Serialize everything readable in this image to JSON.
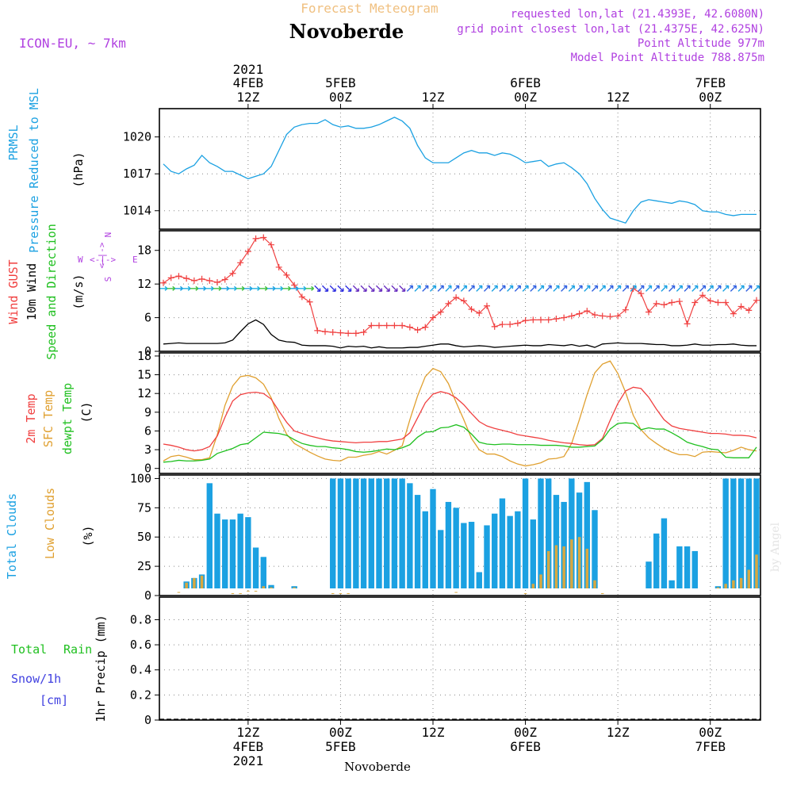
{
  "header": {
    "title_top": "Forecast Meteogram",
    "station": "Novoberde",
    "model": "ICON-EU, ~ 7km",
    "requested": "requested lon,lat (21.4393E, 42.6080N)",
    "gridpoint": "grid point closest lon,lat (21.4375E, 42.625N)",
    "point_alt": "Point Altitude 977m",
    "model_alt": "Model Point Altitude 788.875m",
    "footer_station": "Novoberde",
    "credit": "by Angel"
  },
  "colors": {
    "pressure": "#1ba1e2",
    "gust": "#f04040",
    "wind": "#000000",
    "t2m": "#f04040",
    "sfc": "#e0a030",
    "dew": "#20c020",
    "clouds_total": "#1ba1e2",
    "clouds_low": "#d8a840",
    "rain": "#20c020",
    "snow": "#4040e0",
    "label_purple": "#b040e0",
    "title_orange": "#f0c080"
  },
  "time_axis": {
    "top": [
      {
        "h": 12,
        "l1": "2021",
        "l2": "4FEB",
        "l3": "12Z"
      },
      {
        "h": 24,
        "l1": "",
        "l2": "5FEB",
        "l3": "00Z"
      },
      {
        "h": 36,
        "l1": "",
        "l2": "",
        "l3": "12Z"
      },
      {
        "h": 48,
        "l1": "",
        "l2": "6FEB",
        "l3": "00Z"
      },
      {
        "h": 60,
        "l1": "",
        "l2": "",
        "l3": "12Z"
      },
      {
        "h": 72,
        "l1": "",
        "l2": "7FEB",
        "l3": "00Z"
      }
    ],
    "bottom": [
      {
        "h": 12,
        "l1": "12Z",
        "l2": "4FEB",
        "l3": "2021"
      },
      {
        "h": 24,
        "l1": "00Z",
        "l2": "5FEB",
        "l3": ""
      },
      {
        "h": 36,
        "l1": "12Z",
        "l2": "",
        "l3": ""
      },
      {
        "h": 48,
        "l1": "00Z",
        "l2": "6FEB",
        "l3": ""
      },
      {
        "h": 60,
        "l1": "12Z",
        "l2": "",
        "l3": ""
      },
      {
        "h": 72,
        "l1": "00Z",
        "l2": "7FEB",
        "l3": ""
      }
    ]
  },
  "panels": {
    "pressure": {
      "label1": "PRMSL",
      "label2": "Pressure Reduced to MSL",
      "unit": "(hPa)",
      "ticks": [
        1014,
        1017,
        1020
      ]
    },
    "wind": {
      "label1": "Wind GUST",
      "label2": "10m Wind",
      "label3": "Speed and Direction",
      "unit": "(m/s)",
      "ticks": [
        0,
        6,
        12,
        18
      ],
      "compass_n": "N",
      "compass_s": "S",
      "compass_w": "W",
      "compass_e": "E",
      "compass_ns": "<-|->",
      "compass_we": "<-|->"
    },
    "temp": {
      "label1": "2m Temp",
      "label2": "SFC Temp",
      "label3": "dewpt Temp",
      "unit": "(C)",
      "ticks": [
        0,
        3,
        6,
        9,
        12,
        15,
        18
      ]
    },
    "clouds": {
      "label1": "Total Clouds",
      "label2": "Low Clouds",
      "unit": "(%)",
      "ticks": [
        0,
        25,
        50,
        75,
        100
      ]
    },
    "precip": {
      "label1": "Total",
      "label1b": "Rain",
      "label2": "Snow/1h",
      "label3": "[cm]",
      "unit": "1hr Precip (mm)",
      "ticks": [
        "0",
        "0.2",
        "0.4",
        "0.6",
        "0.8"
      ]
    }
  },
  "chart_data": {
    "type": "line",
    "x_unit": "hours from 4FEB 00Z 2021",
    "x_range": [
      1,
      78
    ],
    "pressure": {
      "ylim": [
        1012.5,
        1022.3
      ],
      "x": [
        1,
        2,
        3,
        4,
        5,
        6,
        7,
        8,
        9,
        10,
        11,
        12,
        13,
        14,
        15,
        16,
        17,
        18,
        19,
        20,
        21,
        22,
        23,
        24,
        25,
        26,
        27,
        28,
        29,
        30,
        31,
        32,
        33,
        34,
        35,
        36,
        37,
        38,
        39,
        40,
        41,
        42,
        43,
        44,
        45,
        46,
        47,
        48,
        49,
        50,
        51,
        52,
        53,
        54,
        55,
        56,
        57,
        58,
        59,
        60,
        61,
        62,
        63,
        64,
        65,
        66,
        67,
        68,
        69,
        70,
        71,
        72,
        73,
        74,
        75,
        76,
        77,
        78
      ],
      "values": [
        1017.8,
        1017.2,
        1017.0,
        1017.4,
        1017.7,
        1018.5,
        1017.9,
        1017.6,
        1017.2,
        1017.2,
        1016.9,
        1016.6,
        1016.8,
        1017.0,
        1017.6,
        1018.9,
        1020.2,
        1020.8,
        1021.0,
        1021.1,
        1021.1,
        1021.4,
        1021.0,
        1020.8,
        1020.9,
        1020.7,
        1020.7,
        1020.8,
        1021.0,
        1021.3,
        1021.6,
        1021.3,
        1020.7,
        1019.3,
        1018.3,
        1017.9,
        1017.9,
        1017.9,
        1018.3,
        1018.7,
        1018.9,
        1018.7,
        1018.7,
        1018.5,
        1018.7,
        1018.6,
        1018.3,
        1017.9,
        1018.0,
        1018.1,
        1017.6,
        1017.8,
        1017.9,
        1017.5,
        1017.0,
        1016.2,
        1015.0,
        1014.1,
        1013.4,
        1013.2,
        1013.0,
        1014.0,
        1014.7,
        1014.9,
        1014.8,
        1014.7,
        1014.6,
        1014.8,
        1014.7,
        1014.5,
        1014.0,
        1013.9,
        1013.9,
        1013.7,
        1013.6,
        1013.7,
        1013.7,
        1013.7
      ]
    },
    "wind": {
      "ylim": [
        0,
        21.5
      ],
      "x": [
        1,
        2,
        3,
        4,
        5,
        6,
        7,
        8,
        9,
        10,
        11,
        12,
        13,
        14,
        15,
        16,
        17,
        18,
        19,
        20,
        21,
        22,
        23,
        24,
        25,
        26,
        27,
        28,
        29,
        30,
        31,
        32,
        33,
        34,
        35,
        36,
        37,
        38,
        39,
        40,
        41,
        42,
        43,
        44,
        45,
        46,
        47,
        48,
        49,
        50,
        51,
        52,
        53,
        54,
        55,
        56,
        57,
        58,
        59,
        60,
        61,
        62,
        63,
        64,
        65,
        66,
        67,
        68,
        69,
        70,
        71,
        72,
        73,
        74,
        75,
        76,
        77,
        78
      ],
      "gust": [
        12.2,
        13.1,
        13.4,
        13.0,
        12.6,
        12.9,
        12.6,
        12.3,
        12.8,
        13.9,
        15.8,
        17.8,
        20.1,
        20.3,
        19.0,
        15.0,
        13.6,
        11.8,
        9.7,
        8.8,
        3.7,
        3.5,
        3.4,
        3.3,
        3.2,
        3.2,
        3.4,
        4.6,
        4.6,
        4.6,
        4.6,
        4.6,
        4.3,
        3.8,
        4.3,
        6.0,
        7.0,
        8.5,
        9.6,
        9.0,
        7.5,
        6.8,
        8.1,
        4.4,
        4.8,
        4.8,
        5.0,
        5.5,
        5.6,
        5.6,
        5.6,
        5.8,
        6.0,
        6.3,
        6.7,
        7.2,
        6.5,
        6.3,
        6.2,
        6.3,
        7.4,
        11.2,
        10.3,
        7.0,
        8.5,
        8.3,
        8.7,
        8.9,
        4.9,
        8.7,
        10.0,
        9.0,
        8.7,
        8.7,
        6.7,
        8.0,
        7.3,
        9.1
      ],
      "speed": [
        1.3,
        1.4,
        1.5,
        1.4,
        1.4,
        1.4,
        1.4,
        1.4,
        1.5,
        2.0,
        3.5,
        4.9,
        5.6,
        4.8,
        3.0,
        2.0,
        1.7,
        1.6,
        1.1,
        1.0,
        1.0,
        1.0,
        0.9,
        0.6,
        0.9,
        0.8,
        0.9,
        0.6,
        0.8,
        0.6,
        0.6,
        0.6,
        0.7,
        0.7,
        0.9,
        1.1,
        1.3,
        1.3,
        1.0,
        0.8,
        0.9,
        1.0,
        0.9,
        0.7,
        0.8,
        0.9,
        1.0,
        1.1,
        1.0,
        1.0,
        1.2,
        1.1,
        1.0,
        1.2,
        0.9,
        1.1,
        0.7,
        1.3,
        1.4,
        1.5,
        1.4,
        1.4,
        1.4,
        1.3,
        1.2,
        1.2,
        1.0,
        1.0,
        1.1,
        1.3,
        1.1,
        1.1,
        1.2,
        1.2,
        1.3,
        1.1,
        1.0,
        1.0
      ]
    },
    "temperature": {
      "ylim": [
        -0.8,
        18.5
      ],
      "x": [
        1,
        2,
        3,
        4,
        5,
        6,
        7,
        8,
        9,
        10,
        11,
        12,
        13,
        14,
        15,
        16,
        17,
        18,
        19,
        20,
        21,
        22,
        23,
        24,
        25,
        26,
        27,
        28,
        29,
        30,
        31,
        32,
        33,
        34,
        35,
        36,
        37,
        38,
        39,
        40,
        41,
        42,
        43,
        44,
        45,
        46,
        47,
        48,
        49,
        50,
        51,
        52,
        53,
        54,
        55,
        56,
        57,
        58,
        59,
        60,
        61,
        62,
        63,
        64,
        65,
        66,
        67,
        68,
        69,
        70,
        71,
        72,
        73,
        74,
        75,
        76,
        77,
        78
      ],
      "t2m": [
        3.9,
        3.7,
        3.4,
        3.0,
        2.8,
        3.0,
        3.5,
        5.2,
        8.2,
        10.8,
        11.8,
        12.1,
        12.2,
        12.0,
        11.1,
        9.2,
        7.4,
        6.0,
        5.6,
        5.2,
        4.9,
        4.6,
        4.4,
        4.3,
        4.2,
        4.1,
        4.2,
        4.2,
        4.3,
        4.3,
        4.5,
        4.7,
        5.7,
        8.1,
        10.5,
        11.9,
        12.3,
        12.0,
        11.3,
        10.2,
        8.8,
        7.5,
        6.8,
        6.4,
        6.1,
        5.8,
        5.4,
        5.2,
        5.0,
        4.8,
        4.5,
        4.3,
        4.1,
        4.0,
        3.8,
        3.7,
        3.8,
        4.8,
        7.7,
        10.4,
        12.4,
        13.0,
        12.8,
        11.4,
        9.5,
        7.8,
        6.8,
        6.4,
        6.2,
        6.0,
        5.8,
        5.6,
        5.6,
        5.5,
        5.3,
        5.3,
        5.2,
        4.9
      ],
      "sfc": [
        1.2,
        1.9,
        2.1,
        1.8,
        1.4,
        1.4,
        1.7,
        5.4,
        10.1,
        13.2,
        14.7,
        14.9,
        14.5,
        13.5,
        11.3,
        8.0,
        5.5,
        4.0,
        3.3,
        2.6,
        2.0,
        1.5,
        1.3,
        1.2,
        1.8,
        1.8,
        2.1,
        2.3,
        2.7,
        2.3,
        2.9,
        3.6,
        7.8,
        11.6,
        14.7,
        16.0,
        15.5,
        13.6,
        10.6,
        7.8,
        4.8,
        3.0,
        2.3,
        2.3,
        1.9,
        1.2,
        0.7,
        0.4,
        0.6,
        0.9,
        1.5,
        1.6,
        1.9,
        4.0,
        7.8,
        11.8,
        15.3,
        16.7,
        17.2,
        15.2,
        12.2,
        8.5,
        6.2,
        4.9,
        4.0,
        3.2,
        2.6,
        2.2,
        2.2,
        1.9,
        2.6,
        2.7,
        2.6,
        2.5,
        2.9,
        3.4,
        3.0,
        2.8
      ],
      "dew": [
        1.0,
        1.1,
        1.3,
        1.2,
        1.2,
        1.3,
        1.5,
        2.4,
        2.8,
        3.2,
        3.8,
        4.0,
        4.9,
        5.8,
        5.7,
        5.6,
        5.3,
        4.6,
        4.0,
        3.7,
        3.5,
        3.5,
        3.3,
        3.2,
        3.0,
        2.7,
        2.6,
        2.7,
        2.9,
        3.1,
        3.0,
        3.3,
        3.8,
        5.0,
        5.8,
        5.9,
        6.5,
        6.6,
        7.0,
        6.6,
        5.5,
        4.2,
        3.9,
        3.8,
        3.9,
        3.9,
        3.8,
        3.8,
        3.8,
        3.7,
        3.7,
        3.7,
        3.6,
        3.4,
        3.4,
        3.5,
        3.6,
        4.6,
        6.3,
        7.2,
        7.3,
        7.2,
        6.2,
        6.5,
        6.3,
        6.3,
        5.7,
        5.0,
        4.2,
        3.8,
        3.5,
        3.1,
        3.0,
        1.8,
        1.7,
        1.7,
        1.7,
        3.4
      ]
    },
    "clouds": {
      "type": "bar",
      "ylim": [
        0,
        103
      ],
      "x": [
        1,
        2,
        3,
        4,
        5,
        6,
        7,
        8,
        9,
        10,
        11,
        12,
        13,
        14,
        15,
        16,
        17,
        18,
        19,
        20,
        21,
        22,
        23,
        24,
        25,
        26,
        27,
        28,
        29,
        30,
        31,
        32,
        33,
        34,
        35,
        36,
        37,
        38,
        39,
        40,
        41,
        42,
        43,
        44,
        45,
        46,
        47,
        48,
        49,
        50,
        51,
        52,
        53,
        54,
        55,
        56,
        57,
        58,
        59,
        60,
        61,
        62,
        63,
        64,
        65,
        66,
        67,
        68,
        69,
        70,
        71,
        72,
        73,
        74,
        75,
        76,
        77,
        78
      ],
      "total": [
        0,
        0,
        4,
        12,
        15,
        18,
        96,
        70,
        65,
        65,
        70,
        67,
        41,
        33,
        9,
        1,
        1,
        8,
        1,
        1,
        1,
        6,
        100,
        100,
        100,
        100,
        100,
        100,
        100,
        100,
        100,
        100,
        96,
        86,
        72,
        91,
        56,
        80,
        75,
        62,
        63,
        20,
        60,
        70,
        83,
        68,
        72,
        100,
        65,
        100,
        100,
        86,
        80,
        100,
        88,
        97,
        73,
        2,
        1,
        1,
        1,
        1,
        1,
        29,
        53,
        66,
        13,
        42,
        42,
        38,
        1,
        1,
        8,
        100,
        100,
        100,
        100,
        100
      ],
      "low": [
        0,
        0,
        3,
        11,
        15,
        17,
        0,
        0,
        0,
        2,
        2,
        4,
        4,
        8,
        7,
        0,
        0,
        7,
        0,
        0,
        0,
        0,
        2,
        2,
        2,
        0,
        0,
        0,
        0,
        0,
        0,
        0,
        0,
        0,
        0,
        0,
        0,
        0,
        3,
        0,
        0,
        0,
        0,
        0,
        0,
        0,
        0,
        2,
        10,
        18,
        38,
        43,
        42,
        48,
        50,
        40,
        13,
        2,
        0,
        0,
        0,
        0,
        0,
        0,
        0,
        0,
        0,
        0,
        0,
        0,
        0,
        0,
        7,
        10,
        13,
        15,
        22,
        35
      ]
    },
    "precip": {
      "type": "bar",
      "ylim": [
        0,
        0.98
      ],
      "rain": [],
      "snow": []
    }
  }
}
